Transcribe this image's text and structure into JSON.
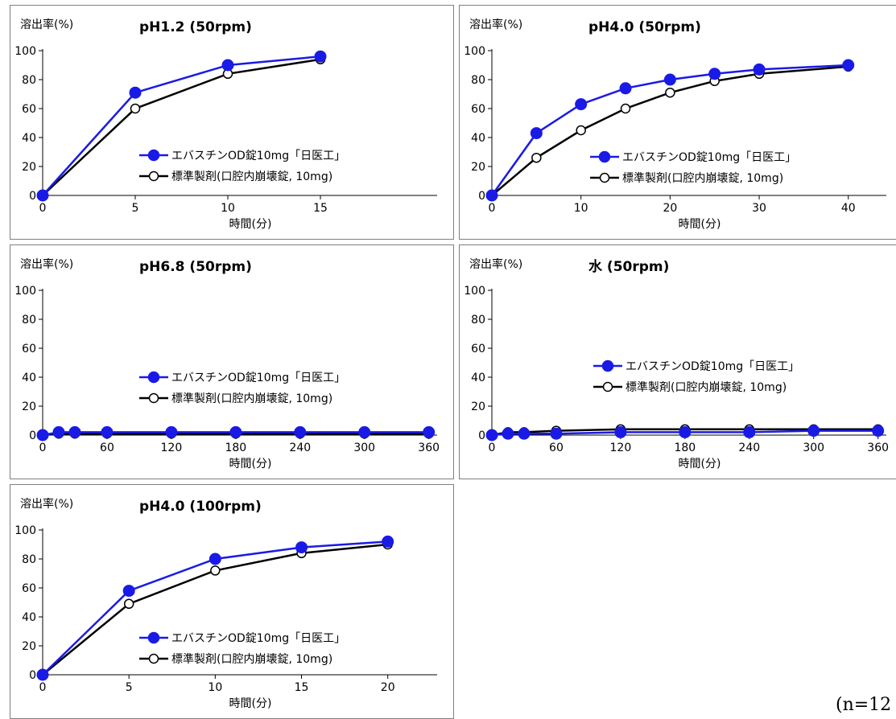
{
  "colors": {
    "test": "#1a1ae6",
    "ref": "#000000",
    "frame": "#7f7f7f"
  },
  "footnote": "(n=12",
  "chart_data": [
    {
      "type": "line",
      "title": "pH1.2 (50rpm)",
      "ylabel": "溶出率(%)",
      "xlabel": "時間(分)",
      "xticks": [
        0,
        5,
        10,
        15
      ],
      "xlim": [
        0,
        18
      ],
      "yticks": [
        0,
        20,
        40,
        60,
        80,
        100
      ],
      "ylim": [
        0,
        100
      ],
      "legend": "center-right",
      "series": [
        {
          "name": "エバスチンOD錠10mg「日医工」",
          "marker": "filled",
          "x": [
            0,
            5,
            10,
            15
          ],
          "values": [
            0,
            71,
            90,
            96
          ]
        },
        {
          "name": "標準製剤(口腔内崩壊錠, 10mg)",
          "marker": "open",
          "x": [
            0,
            5,
            10,
            15
          ],
          "values": [
            0,
            60,
            84,
            94
          ]
        }
      ]
    },
    {
      "type": "line",
      "title": "pH4.0 (50rpm)",
      "ylabel": "溶出率(%)",
      "xlabel": "時間(分)",
      "xticks": [
        0,
        10,
        20,
        30,
        40
      ],
      "xlim": [
        0,
        44
      ],
      "yticks": [
        0,
        20,
        40,
        60,
        80,
        100
      ],
      "ylim": [
        0,
        100
      ],
      "legend": "center-right",
      "series": [
        {
          "name": "エバスチンOD錠10mg「日医工」",
          "marker": "filled",
          "x": [
            0,
            5,
            10,
            15,
            20,
            25,
            30,
            40
          ],
          "values": [
            0,
            43,
            63,
            74,
            80,
            84,
            87,
            90
          ]
        },
        {
          "name": "標準製剤(口腔内崩壊錠, 10mg)",
          "marker": "open",
          "x": [
            0,
            5,
            10,
            15,
            20,
            25,
            30,
            40
          ],
          "values": [
            0,
            26,
            45,
            60,
            71,
            79,
            84,
            89
          ]
        }
      ]
    },
    {
      "type": "line",
      "title": "pH6.8 (50rpm)",
      "ylabel": "溶出率(%)",
      "xlabel": "時間(分)",
      "xticks": [
        0,
        60,
        120,
        180,
        240,
        300,
        360
      ],
      "xlim": [
        0,
        370
      ],
      "yticks": [
        0,
        20,
        40,
        60,
        80,
        100
      ],
      "ylim": [
        0,
        100
      ],
      "legend": "center",
      "series": [
        {
          "name": "エバスチンOD錠10mg「日医工」",
          "marker": "filled",
          "x": [
            0,
            15,
            30,
            60,
            120,
            180,
            240,
            300,
            360
          ],
          "values": [
            0,
            2,
            2,
            2,
            2,
            2,
            2,
            2,
            2
          ]
        },
        {
          "name": "標準製剤(口腔内崩壊錠, 10mg)",
          "marker": "open",
          "x": [
            0,
            15,
            30,
            60,
            120,
            180,
            240,
            300,
            360
          ],
          "values": [
            0,
            1,
            1,
            1,
            1,
            1,
            1,
            1,
            1
          ]
        }
      ]
    },
    {
      "type": "line",
      "title": "水 (50rpm)",
      "ylabel": "溶出率(%)",
      "xlabel": "時間(分)",
      "xticks": [
        0,
        60,
        120,
        180,
        240,
        300,
        360
      ],
      "xlim": [
        0,
        370
      ],
      "yticks": [
        0,
        20,
        40,
        60,
        80,
        100
      ],
      "ylim": [
        0,
        100
      ],
      "legend": "center-right",
      "series": [
        {
          "name": "エバスチンOD錠10mg「日医工」",
          "marker": "filled",
          "x": [
            0,
            15,
            30,
            60,
            120,
            180,
            240,
            300,
            360
          ],
          "values": [
            0,
            1,
            1,
            1,
            2,
            2,
            2,
            3,
            3
          ]
        },
        {
          "name": "標準製剤(口腔内崩壊錠, 10mg)",
          "marker": "open",
          "x": [
            0,
            15,
            30,
            60,
            120,
            180,
            240,
            300,
            360
          ],
          "values": [
            0,
            2,
            2,
            3,
            4,
            4,
            4,
            4,
            4
          ]
        }
      ]
    },
    {
      "type": "line",
      "title": "pH4.0 (100rpm)",
      "ylabel": "溶出率(%)",
      "xlabel": "時間(分)",
      "xticks": [
        0,
        5,
        10,
        15,
        20
      ],
      "xlim": [
        0,
        23
      ],
      "yticks": [
        0,
        20,
        40,
        60,
        80,
        100
      ],
      "ylim": [
        0,
        100
      ],
      "legend": "center-right",
      "series": [
        {
          "name": "エバスチンOD錠10mg「日医工」",
          "marker": "filled",
          "x": [
            0,
            5,
            10,
            15,
            20
          ],
          "values": [
            0,
            58,
            80,
            88,
            92
          ]
        },
        {
          "name": "標準製剤(口腔内崩壊錠, 10mg)",
          "marker": "open",
          "x": [
            0,
            5,
            10,
            15,
            20
          ],
          "values": [
            0,
            49,
            72,
            84,
            90
          ]
        }
      ]
    }
  ]
}
